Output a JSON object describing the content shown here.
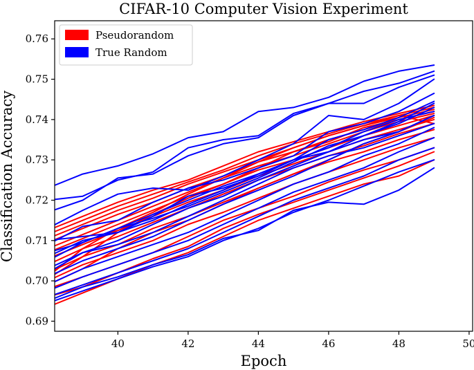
{
  "chart_data": {
    "type": "line",
    "title": "CIFAR-10 Computer Vision Experiment",
    "xlabel": "Epoch",
    "ylabel": "Classification Accuracy",
    "xlim": [
      38.2,
      50.1
    ],
    "ylim": [
      0.6875,
      0.7645
    ],
    "xticks": [
      40,
      42,
      44,
      46,
      48,
      50
    ],
    "yticks": [
      0.69,
      0.7,
      0.71,
      0.72,
      0.73,
      0.74,
      0.75,
      0.76
    ],
    "grid": false,
    "legend_position": "top-left",
    "x": [
      38,
      39,
      40,
      41,
      42,
      43,
      44,
      45,
      46,
      47,
      48,
      49
    ],
    "groups": [
      {
        "label": "Pseudorandom",
        "color": "#ff0000",
        "runs": [
          [
            0.6935,
            0.697,
            0.7005,
            0.704,
            0.707,
            0.711,
            0.715,
            0.718,
            0.721,
            0.724,
            0.726,
            0.73
          ],
          [
            0.696,
            0.6985,
            0.702,
            0.7055,
            0.7085,
            0.713,
            0.7165,
            0.7195,
            0.7225,
            0.7255,
            0.7285,
            0.732
          ],
          [
            0.698,
            0.701,
            0.704,
            0.707,
            0.711,
            0.715,
            0.718,
            0.721,
            0.7245,
            0.7275,
            0.73,
            0.733
          ],
          [
            0.7,
            0.704,
            0.707,
            0.71,
            0.714,
            0.717,
            0.7205,
            0.724,
            0.727,
            0.73,
            0.733,
            0.7355
          ],
          [
            0.702,
            0.706,
            0.709,
            0.713,
            0.716,
            0.7195,
            0.723,
            0.7265,
            0.7295,
            0.732,
            0.735,
            0.7375
          ],
          [
            0.704,
            0.708,
            0.711,
            0.7145,
            0.718,
            0.7215,
            0.725,
            0.728,
            0.731,
            0.7335,
            0.7365,
            0.739
          ],
          [
            0.7055,
            0.709,
            0.7125,
            0.716,
            0.7195,
            0.7225,
            0.726,
            0.729,
            0.732,
            0.735,
            0.7375,
            0.74
          ],
          [
            0.707,
            0.7105,
            0.714,
            0.7175,
            0.721,
            0.724,
            0.7275,
            0.73,
            0.733,
            0.736,
            0.7385,
            0.741
          ],
          [
            0.708,
            0.7115,
            0.715,
            0.7185,
            0.722,
            0.7255,
            0.7285,
            0.731,
            0.734,
            0.737,
            0.7395,
            0.7415
          ],
          [
            0.7095,
            0.713,
            0.7165,
            0.7195,
            0.723,
            0.726,
            0.7295,
            0.732,
            0.735,
            0.7375,
            0.74,
            0.742
          ],
          [
            0.7105,
            0.714,
            0.7175,
            0.7205,
            0.724,
            0.727,
            0.73,
            0.733,
            0.736,
            0.7385,
            0.7405,
            0.7425
          ],
          [
            0.7115,
            0.715,
            0.7185,
            0.7215,
            0.7245,
            0.7275,
            0.731,
            0.734,
            0.7365,
            0.739,
            0.741,
            0.743
          ],
          [
            0.7125,
            0.716,
            0.7195,
            0.7225,
            0.725,
            0.7285,
            0.732,
            0.7345,
            0.737,
            0.7395,
            0.7415,
            0.7435
          ],
          [
            0.7005,
            0.706,
            0.712,
            0.7165,
            0.7205,
            0.724,
            0.728,
            0.732,
            0.7345,
            0.738,
            0.74,
            0.742
          ],
          [
            0.699,
            0.703,
            0.708,
            0.712,
            0.715,
            0.719,
            0.723,
            0.7265,
            0.73,
            0.734,
            0.737,
            0.7405
          ],
          [
            0.701,
            0.708,
            0.713,
            0.717,
            0.7215,
            0.7255,
            0.7295,
            0.733,
            0.736,
            0.7385,
            0.741,
            0.739
          ]
        ]
      },
      {
        "label": "True Random",
        "color": "#0000ff",
        "runs": [
          [
            0.723,
            0.7265,
            0.7285,
            0.7315,
            0.7355,
            0.737,
            0.742,
            0.743,
            0.7455,
            0.7495,
            0.752,
            0.7535
          ],
          [
            0.72,
            0.721,
            0.725,
            0.727,
            0.733,
            0.735,
            0.736,
            0.7415,
            0.744,
            0.747,
            0.749,
            0.752
          ],
          [
            0.717,
            0.72,
            0.7255,
            0.7265,
            0.731,
            0.734,
            0.7355,
            0.741,
            0.744,
            0.744,
            0.748,
            0.751
          ],
          [
            0.713,
            0.7175,
            0.7215,
            0.723,
            0.7225,
            0.726,
            0.73,
            0.734,
            0.741,
            0.74,
            0.744,
            0.75
          ],
          [
            0.709,
            0.7135,
            0.715,
            0.7195,
            0.723,
            0.725,
            0.728,
            0.731,
            0.737,
            0.739,
            0.742,
            0.7465
          ],
          [
            0.705,
            0.7095,
            0.713,
            0.7165,
            0.72,
            0.7235,
            0.7265,
            0.73,
            0.735,
            0.7375,
            0.7405,
            0.7445
          ],
          [
            0.703,
            0.707,
            0.71,
            0.714,
            0.718,
            0.721,
            0.725,
            0.7285,
            0.732,
            0.736,
            0.739,
            0.743
          ],
          [
            0.701,
            0.705,
            0.708,
            0.711,
            0.715,
            0.719,
            0.7225,
            0.726,
            0.73,
            0.734,
            0.737,
            0.741
          ],
          [
            0.699,
            0.703,
            0.706,
            0.709,
            0.712,
            0.716,
            0.72,
            0.724,
            0.727,
            0.731,
            0.734,
            0.738
          ],
          [
            0.6975,
            0.701,
            0.704,
            0.707,
            0.71,
            0.714,
            0.718,
            0.722,
            0.725,
            0.728,
            0.732,
            0.7355
          ],
          [
            0.696,
            0.699,
            0.702,
            0.705,
            0.708,
            0.712,
            0.716,
            0.72,
            0.723,
            0.726,
            0.73,
            0.733
          ],
          [
            0.6945,
            0.6975,
            0.7005,
            0.7035,
            0.706,
            0.71,
            0.713,
            0.717,
            0.72,
            0.7235,
            0.727,
            0.73
          ],
          [
            0.695,
            0.6985,
            0.701,
            0.704,
            0.7065,
            0.7105,
            0.7125,
            0.7175,
            0.7195,
            0.719,
            0.7225,
            0.728
          ],
          [
            0.707,
            0.7095,
            0.713,
            0.7155,
            0.7185,
            0.722,
            0.7255,
            0.7295,
            0.7335,
            0.736,
            0.7395,
            0.744
          ],
          [
            0.71,
            0.711,
            0.712,
            0.716,
            0.721,
            0.723,
            0.726,
            0.73,
            0.733,
            0.737,
            0.74,
            0.742
          ],
          [
            0.706,
            0.71,
            0.712,
            0.715,
            0.719,
            0.7225,
            0.7265,
            0.73,
            0.732,
            0.735,
            0.737,
            0.741
          ],
          [
            0.702,
            0.707,
            0.709,
            0.712,
            0.716,
            0.72,
            0.724,
            0.728,
            0.731,
            0.733,
            0.736,
            0.739
          ]
        ]
      }
    ]
  }
}
